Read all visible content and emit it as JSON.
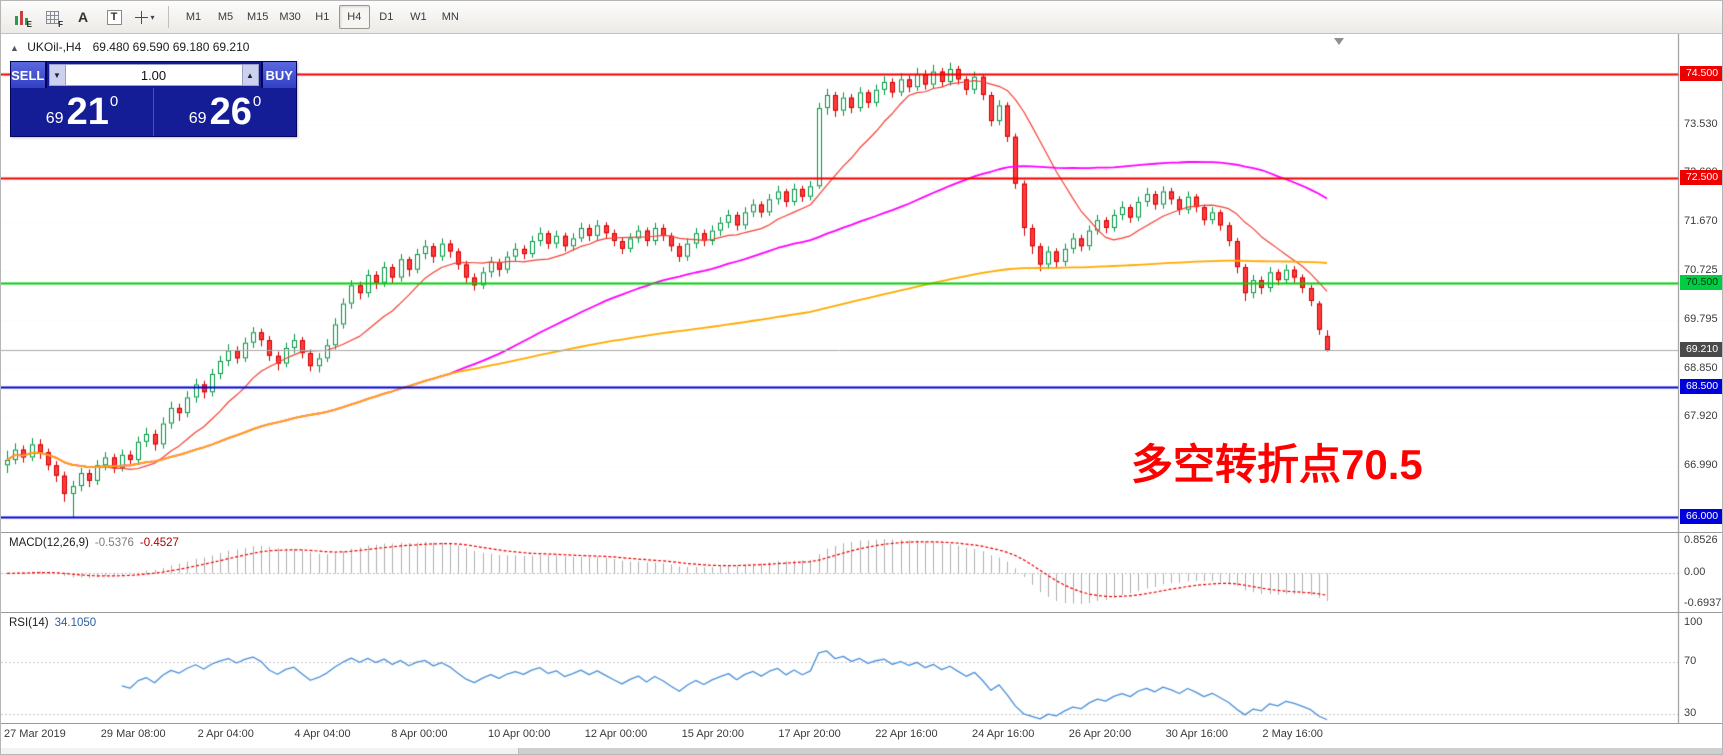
{
  "icons": {
    "collapse_arrow": "▲",
    "volume_down": "▼",
    "volume_up": "▲",
    "caret": "▾"
  },
  "toolbar": {
    "icon_candles_label": "E",
    "icon_grid_label": "F",
    "icon_font_label": "A",
    "icon_text_label": "T",
    "timeframes": [
      "M1",
      "M5",
      "M15",
      "M30",
      "H1",
      "H4",
      "D1",
      "W1",
      "MN"
    ],
    "active_timeframe": "H4"
  },
  "chart": {
    "title": "UKOil-,H4",
    "ohlc": "69.480  69.590  69.180  69.210",
    "annotation": "多空转折点70.5",
    "annotation_color": "#ff0000"
  },
  "trade": {
    "sell_label": "SELL",
    "buy_label": "BUY",
    "volume": "1.00",
    "sell_price": {
      "prefix": "69",
      "big": "21",
      "sup": "0"
    },
    "buy_price": {
      "prefix": "69",
      "big": "26",
      "sup": "0"
    }
  },
  "price_axis": {
    "gridline_labels": [
      "73.530",
      "72.600",
      "71.670",
      "70.725",
      "69.795",
      "68.850",
      "67.920",
      "66.990"
    ],
    "badges": [
      {
        "text": "74.500",
        "price": 74.5,
        "color": "#ee0000",
        "text_color": "#ffffff"
      },
      {
        "text": "72.500",
        "price": 72.5,
        "color": "#ee0000",
        "text_color": "#ffffff"
      },
      {
        "text": "70.500",
        "price": 70.5,
        "color": "#00cc44",
        "text_color": "#00390f"
      },
      {
        "text": "69.210",
        "price": 69.21,
        "color": "#4a4a4a",
        "text_color": "#ffffff"
      },
      {
        "text": "68.500",
        "price": 68.5,
        "color": "#0000dd",
        "text_color": "#ffffff"
      },
      {
        "text": "66.000",
        "price": 66.0,
        "color": "#0000dd",
        "text_color": "#ffffff"
      }
    ]
  },
  "hlines": [
    {
      "price": 74.5,
      "color": "#ee0000",
      "width": 2
    },
    {
      "price": 72.5,
      "color": "#ee0000",
      "width": 2
    },
    {
      "price": 70.5,
      "color": "#00d000",
      "width": 2
    },
    {
      "price": 68.5,
      "color": "#0000dd",
      "width": 2
    },
    {
      "price": 66.0,
      "color": "#0000dd",
      "width": 2
    },
    {
      "price": 69.21,
      "color": "#aaaaaa",
      "width": 1
    }
  ],
  "macd": {
    "name": "MACD(12,26,9)",
    "value1": "-0.5376",
    "value2": "-0.4527",
    "axis_labels": [
      "0.8526",
      "0.00",
      "-0.6937"
    ],
    "params": {
      "fast": 12,
      "slow": 26,
      "signal": 9
    }
  },
  "rsi": {
    "name": "RSI(14)",
    "value": "34.1050",
    "axis_labels": [
      "100",
      "70",
      "30"
    ],
    "levels": [
      70,
      30
    ],
    "period": 14
  },
  "time_axis": [
    "27 Mar 2019",
    "29 Mar 08:00",
    "2 Apr 04:00",
    "4 Apr 04:00",
    "8 Apr 00:00",
    "10 Apr 00:00",
    "12 Apr 00:00",
    "15 Apr 20:00",
    "17 Apr 20:00",
    "22 Apr 16:00",
    "24 Apr 16:00",
    "26 Apr 20:00",
    "30 Apr 16:00",
    "2 May 16:00"
  ],
  "chart_data": {
    "type": "candlestick",
    "symbol": "UKOil-",
    "timeframe": "H4",
    "ylim": [
      65.72,
      75.27
    ],
    "colors": {
      "up": "#ffffff",
      "up_border": "#009944",
      "down": "#ff3b3b",
      "down_border": "#d40000",
      "ma_fast": "#f44336",
      "ma_mid": "#ff00ff",
      "ma_slow": "#ffaa00",
      "macd_hist": "#b0b0b0",
      "macd_signal": "#ee0000",
      "rsi_line": "#4a90d9"
    },
    "moving_averages": [
      {
        "period": 12,
        "color_key": "ma_fast",
        "width": 1.2
      },
      {
        "period": 55,
        "color_key": "ma_mid",
        "width": 1.8
      },
      {
        "period": 200,
        "color_key": "ma_slow",
        "width": 1.8
      }
    ],
    "candles": [
      [
        67.0,
        67.28,
        66.85,
        67.1
      ],
      [
        67.1,
        67.42,
        67.02,
        67.3
      ],
      [
        67.3,
        67.38,
        67.05,
        67.15
      ],
      [
        67.15,
        67.52,
        67.08,
        67.4
      ],
      [
        67.4,
        67.5,
        67.12,
        67.25
      ],
      [
        67.25,
        67.32,
        66.9,
        67.0
      ],
      [
        67.0,
        67.08,
        66.68,
        66.8
      ],
      [
        66.8,
        66.88,
        66.3,
        66.45
      ],
      [
        66.45,
        66.7,
        66.0,
        66.6
      ],
      [
        66.6,
        66.95,
        66.5,
        66.85
      ],
      [
        66.85,
        66.92,
        66.58,
        66.7
      ],
      [
        66.7,
        67.1,
        66.62,
        67.0
      ],
      [
        67.0,
        67.25,
        66.9,
        67.15
      ],
      [
        67.15,
        67.22,
        66.85,
        66.95
      ],
      [
        66.95,
        67.3,
        66.88,
        67.2
      ],
      [
        67.2,
        67.28,
        66.98,
        67.1
      ],
      [
        67.1,
        67.55,
        67.02,
        67.45
      ],
      [
        67.45,
        67.72,
        67.35,
        67.6
      ],
      [
        67.6,
        67.68,
        67.28,
        67.4
      ],
      [
        67.4,
        67.92,
        67.32,
        67.8
      ],
      [
        67.8,
        68.22,
        67.7,
        68.1
      ],
      [
        68.1,
        68.18,
        67.85,
        68.0
      ],
      [
        68.0,
        68.42,
        67.92,
        68.3
      ],
      [
        68.3,
        68.66,
        68.2,
        68.55
      ],
      [
        68.55,
        68.62,
        68.28,
        68.4
      ],
      [
        68.4,
        68.85,
        68.32,
        68.75
      ],
      [
        68.75,
        69.1,
        68.65,
        69.0
      ],
      [
        69.0,
        69.32,
        68.9,
        69.2
      ],
      [
        69.2,
        69.28,
        68.95,
        69.05
      ],
      [
        69.05,
        69.45,
        68.98,
        69.35
      ],
      [
        69.35,
        69.65,
        69.25,
        69.55
      ],
      [
        69.55,
        69.62,
        69.28,
        69.4
      ],
      [
        69.4,
        69.48,
        69.0,
        69.1
      ],
      [
        69.1,
        69.18,
        68.82,
        68.95
      ],
      [
        68.95,
        69.35,
        68.88,
        69.25
      ],
      [
        69.25,
        69.52,
        69.15,
        69.4
      ],
      [
        69.4,
        69.46,
        69.05,
        69.15
      ],
      [
        69.15,
        69.22,
        68.8,
        68.9
      ],
      [
        68.9,
        69.15,
        68.78,
        69.05
      ],
      [
        69.05,
        69.42,
        68.98,
        69.3
      ],
      [
        69.3,
        69.82,
        69.22,
        69.7
      ],
      [
        69.7,
        70.2,
        69.62,
        70.1
      ],
      [
        70.1,
        70.55,
        70.0,
        70.45
      ],
      [
        70.45,
        70.52,
        70.18,
        70.3
      ],
      [
        70.3,
        70.75,
        70.22,
        70.65
      ],
      [
        70.65,
        70.72,
        70.38,
        70.5
      ],
      [
        70.5,
        70.9,
        70.42,
        70.8
      ],
      [
        70.8,
        70.86,
        70.48,
        70.6
      ],
      [
        70.6,
        71.05,
        70.52,
        70.95
      ],
      [
        70.95,
        71.0,
        70.62,
        70.75
      ],
      [
        70.75,
        71.15,
        70.68,
        71.05
      ],
      [
        71.05,
        71.32,
        70.95,
        71.2
      ],
      [
        71.2,
        71.26,
        70.88,
        71.0
      ],
      [
        71.0,
        71.35,
        70.92,
        71.25
      ],
      [
        71.25,
        71.32,
        70.98,
        71.1
      ],
      [
        71.1,
        71.16,
        70.75,
        70.85
      ],
      [
        70.85,
        70.92,
        70.5,
        70.6
      ],
      [
        70.6,
        70.68,
        70.35,
        70.45
      ],
      [
        70.45,
        70.8,
        70.38,
        70.7
      ],
      [
        70.7,
        71.0,
        70.6,
        70.9
      ],
      [
        70.9,
        70.96,
        70.62,
        70.75
      ],
      [
        70.75,
        71.1,
        70.68,
        71.0
      ],
      [
        71.0,
        71.26,
        70.92,
        71.15
      ],
      [
        71.15,
        71.22,
        70.95,
        71.05
      ],
      [
        71.05,
        71.4,
        70.98,
        71.3
      ],
      [
        71.3,
        71.56,
        71.2,
        71.45
      ],
      [
        71.45,
        71.5,
        71.15,
        71.25
      ],
      [
        71.25,
        71.5,
        71.16,
        71.4
      ],
      [
        71.4,
        71.46,
        71.1,
        71.2
      ],
      [
        71.2,
        71.45,
        71.12,
        71.35
      ],
      [
        71.35,
        71.65,
        71.28,
        71.55
      ],
      [
        71.55,
        71.62,
        71.3,
        71.4
      ],
      [
        71.4,
        71.7,
        71.32,
        71.6
      ],
      [
        71.6,
        71.66,
        71.35,
        71.45
      ],
      [
        71.45,
        71.52,
        71.2,
        71.3
      ],
      [
        71.3,
        71.36,
        71.05,
        71.15
      ],
      [
        71.15,
        71.45,
        71.08,
        71.35
      ],
      [
        71.35,
        71.6,
        71.26,
        71.5
      ],
      [
        71.5,
        71.56,
        71.2,
        71.3
      ],
      [
        71.3,
        71.65,
        71.22,
        71.55
      ],
      [
        71.55,
        71.62,
        71.3,
        71.4
      ],
      [
        71.4,
        71.46,
        71.1,
        71.2
      ],
      [
        71.2,
        71.26,
        70.9,
        71.0
      ],
      [
        71.0,
        71.35,
        70.92,
        71.25
      ],
      [
        71.25,
        71.55,
        71.16,
        71.45
      ],
      [
        71.45,
        71.52,
        71.2,
        71.3
      ],
      [
        71.3,
        71.6,
        71.22,
        71.5
      ],
      [
        71.5,
        71.76,
        71.4,
        71.65
      ],
      [
        71.65,
        71.9,
        71.55,
        71.8
      ],
      [
        71.8,
        71.86,
        71.5,
        71.6
      ],
      [
        71.6,
        71.95,
        71.52,
        71.85
      ],
      [
        71.85,
        72.1,
        71.76,
        72.0
      ],
      [
        72.0,
        72.06,
        71.75,
        71.85
      ],
      [
        71.85,
        72.2,
        71.78,
        72.1
      ],
      [
        72.1,
        72.36,
        72.0,
        72.25
      ],
      [
        72.25,
        72.3,
        71.95,
        72.05
      ],
      [
        72.05,
        72.4,
        71.98,
        72.3
      ],
      [
        72.3,
        72.36,
        72.05,
        72.15
      ],
      [
        72.15,
        72.45,
        72.08,
        72.35
      ],
      [
        72.35,
        73.95,
        72.3,
        73.85
      ],
      [
        73.85,
        74.22,
        73.72,
        74.1
      ],
      [
        74.1,
        74.16,
        73.68,
        73.8
      ],
      [
        73.8,
        74.15,
        73.7,
        74.05
      ],
      [
        74.05,
        74.12,
        73.75,
        73.85
      ],
      [
        73.85,
        74.25,
        73.78,
        74.15
      ],
      [
        74.15,
        74.2,
        73.85,
        73.95
      ],
      [
        73.95,
        74.3,
        73.88,
        74.2
      ],
      [
        74.2,
        74.46,
        74.1,
        74.35
      ],
      [
        74.35,
        74.42,
        74.05,
        74.15
      ],
      [
        74.15,
        74.52,
        74.08,
        74.4
      ],
      [
        74.4,
        74.48,
        74.15,
        74.25
      ],
      [
        74.25,
        74.62,
        74.18,
        74.5
      ],
      [
        74.5,
        74.58,
        74.2,
        74.3
      ],
      [
        74.3,
        74.68,
        74.22,
        74.55
      ],
      [
        74.55,
        74.62,
        74.25,
        74.35
      ],
      [
        74.35,
        74.72,
        74.28,
        74.6
      ],
      [
        74.6,
        74.66,
        74.3,
        74.4
      ],
      [
        74.4,
        74.46,
        74.1,
        74.2
      ],
      [
        74.2,
        74.55,
        74.12,
        74.45
      ],
      [
        74.45,
        74.5,
        74.0,
        74.1
      ],
      [
        74.1,
        74.16,
        73.5,
        73.6
      ],
      [
        73.6,
        74.0,
        73.52,
        73.9
      ],
      [
        73.9,
        73.96,
        73.2,
        73.3
      ],
      [
        73.3,
        73.36,
        72.3,
        72.4
      ],
      [
        72.4,
        72.46,
        71.4,
        71.55
      ],
      [
        71.55,
        71.62,
        71.05,
        71.2
      ],
      [
        71.2,
        71.26,
        70.72,
        70.85
      ],
      [
        70.85,
        71.2,
        70.76,
        71.1
      ],
      [
        71.1,
        71.16,
        70.8,
        70.9
      ],
      [
        70.9,
        71.25,
        70.82,
        71.15
      ],
      [
        71.15,
        71.45,
        71.06,
        71.35
      ],
      [
        71.35,
        71.42,
        71.1,
        71.2
      ],
      [
        71.2,
        71.6,
        71.12,
        71.5
      ],
      [
        71.5,
        71.8,
        71.42,
        71.7
      ],
      [
        71.7,
        71.76,
        71.45,
        71.55
      ],
      [
        71.55,
        71.9,
        71.48,
        71.8
      ],
      [
        71.8,
        72.06,
        71.7,
        71.95
      ],
      [
        71.95,
        72.0,
        71.65,
        71.75
      ],
      [
        71.75,
        72.15,
        71.68,
        72.05
      ],
      [
        72.05,
        72.32,
        71.96,
        72.2
      ],
      [
        72.2,
        72.26,
        71.9,
        72.0
      ],
      [
        72.0,
        72.35,
        71.92,
        72.25
      ],
      [
        72.25,
        72.32,
        72.0,
        72.1
      ],
      [
        72.1,
        72.16,
        71.8,
        71.9
      ],
      [
        71.9,
        72.25,
        71.82,
        72.15
      ],
      [
        72.15,
        72.2,
        71.85,
        71.95
      ],
      [
        71.95,
        72.0,
        71.6,
        71.7
      ],
      [
        71.7,
        71.95,
        71.62,
        71.85
      ],
      [
        71.85,
        71.9,
        71.5,
        71.6
      ],
      [
        71.6,
        71.66,
        71.2,
        71.3
      ],
      [
        71.3,
        71.36,
        70.68,
        70.8
      ],
      [
        70.8,
        70.86,
        70.15,
        70.3
      ],
      [
        70.3,
        70.65,
        70.2,
        70.55
      ],
      [
        70.55,
        70.62,
        70.28,
        70.4
      ],
      [
        70.4,
        70.8,
        70.32,
        70.7
      ],
      [
        70.7,
        70.76,
        70.45,
        70.55
      ],
      [
        70.55,
        70.85,
        70.48,
        70.75
      ],
      [
        70.75,
        70.82,
        70.5,
        70.6
      ],
      [
        70.6,
        70.66,
        70.3,
        70.4
      ],
      [
        70.4,
        70.46,
        70.05,
        70.15
      ],
      [
        70.1,
        70.15,
        69.5,
        69.6
      ],
      [
        69.48,
        69.59,
        69.18,
        69.21
      ]
    ]
  }
}
